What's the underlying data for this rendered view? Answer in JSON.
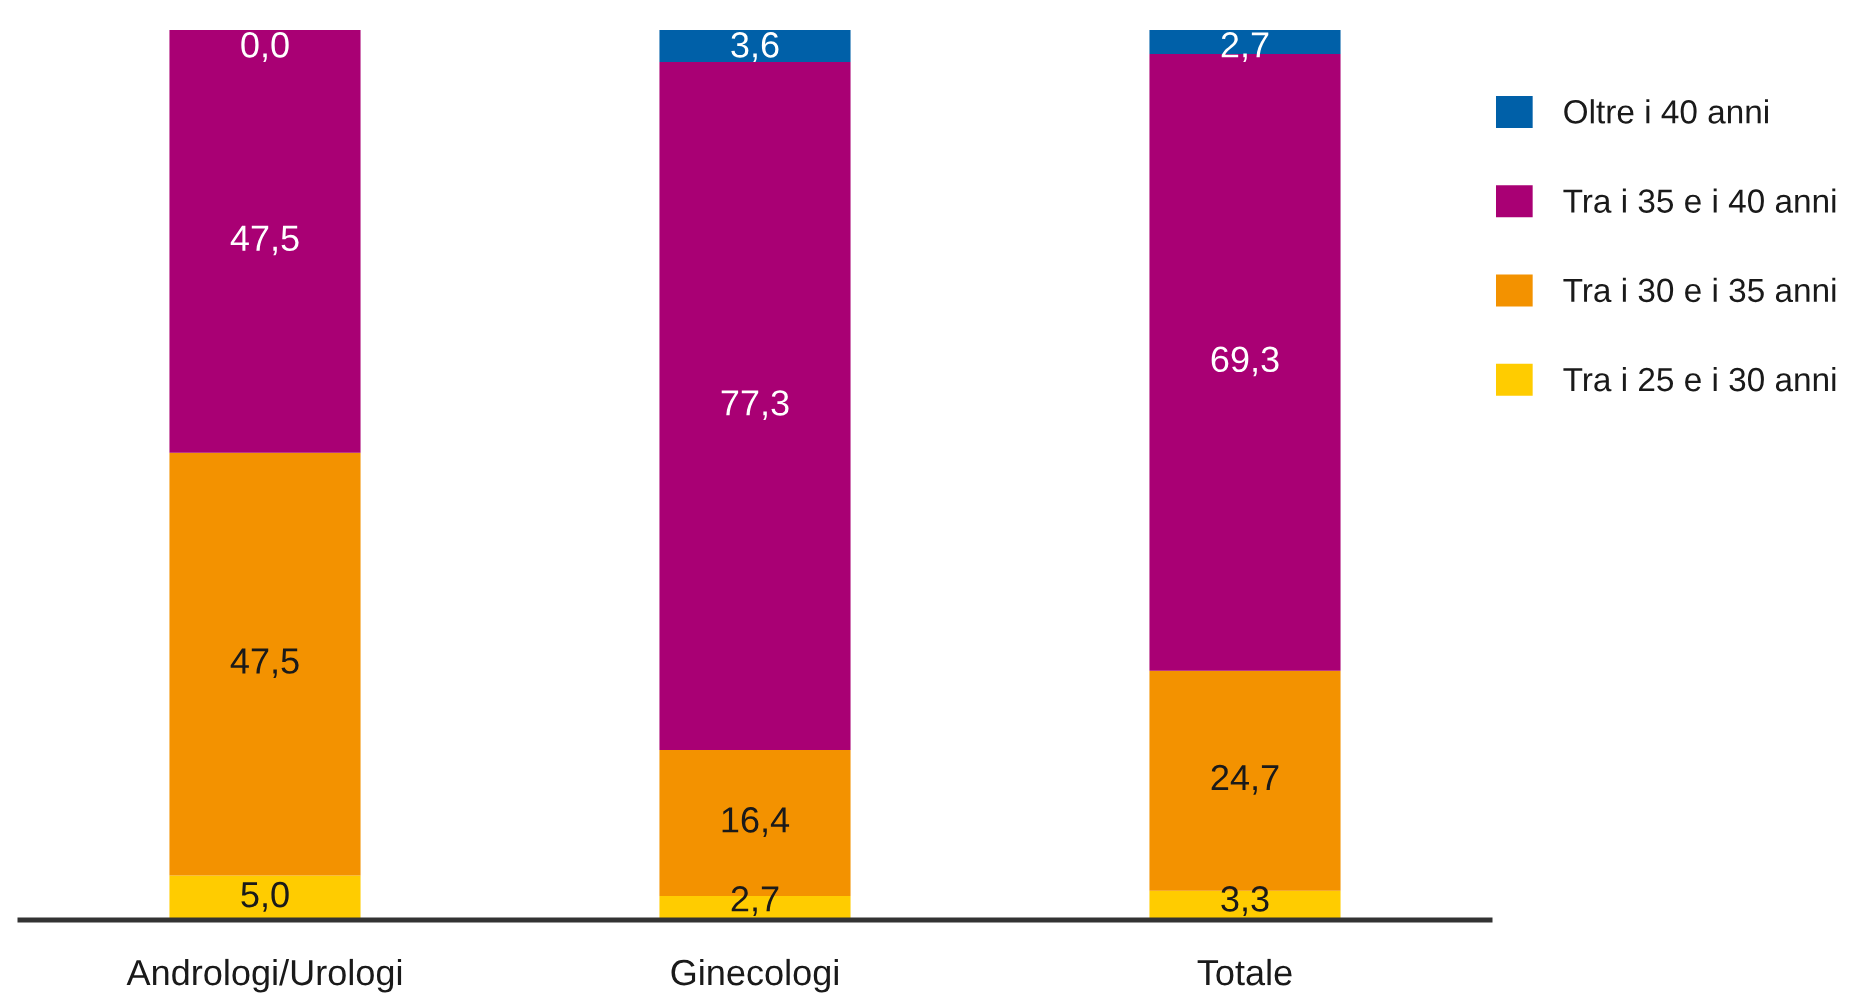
{
  "chart_data": {
    "type": "bar",
    "stacked": true,
    "legend": "right",
    "categories": [
      "Andrologi/Urologi",
      "Ginecologi",
      "Totale"
    ],
    "series": [
      {
        "name": "Tra i 25 e i 30 anni",
        "color": "#ffcc00",
        "values": [
          5.0,
          2.7,
          3.3
        ],
        "value_labels": [
          "5,0",
          "2,7",
          "3,3"
        ]
      },
      {
        "name": "Tra i 30 e i 35 anni",
        "color": "#f39200",
        "values": [
          47.5,
          16.4,
          24.7
        ],
        "value_labels": [
          "47,5",
          "16,4",
          "24,7"
        ]
      },
      {
        "name": "Tra i 35 e i 40 anni",
        "color": "#a90074",
        "values": [
          47.5,
          77.3,
          69.3
        ],
        "value_labels": [
          "47,5",
          "77,3",
          "69,3"
        ]
      },
      {
        "name": "Oltre i 40 anni",
        "color": "#0060a8",
        "values": [
          0.0,
          3.6,
          2.7
        ],
        "value_labels": [
          "0,0",
          "3,6",
          "2,7"
        ]
      }
    ]
  }
}
